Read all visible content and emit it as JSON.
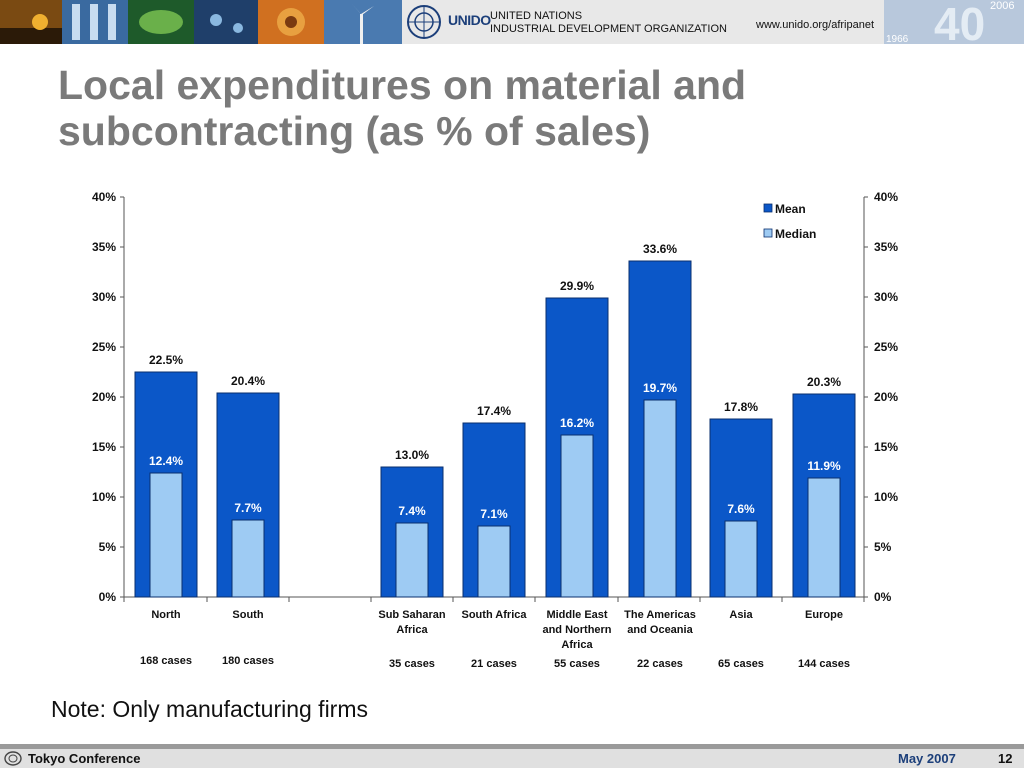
{
  "header": {
    "logo_word": "UNIDO",
    "org_line1": "UNITED NATIONS",
    "org_line2": "INDUSTRIAL DEVELOPMENT ORGANIZATION",
    "url": "www.unido.org/afripanet",
    "anniversary_year_top": "2006",
    "anniversary_year_bottom": "1966",
    "anniversary_number": "40"
  },
  "slide": {
    "title": "Local expenditures on material and subcontracting (as % of sales)",
    "note": "Note: Only manufacturing firms"
  },
  "footer": {
    "left": "Tokyo Conference",
    "date": "May 2007",
    "page": "12"
  },
  "colors": {
    "mean": "#0b57c8",
    "median": "#9ecbf3",
    "title": "#7a7a7a"
  },
  "chart_data": {
    "type": "bar",
    "ylim": [
      0,
      40
    ],
    "y_ticks": [
      "0%",
      "5%",
      "10%",
      "15%",
      "20%",
      "25%",
      "30%",
      "35%",
      "40%"
    ],
    "groups": [
      {
        "label": [
          "North"
        ],
        "cases": "168 cases",
        "mean": 22.5,
        "median": 12.4,
        "mean_label": "22.5%",
        "median_label": "12.4%"
      },
      {
        "label": [
          "South"
        ],
        "cases": "180 cases",
        "mean": 20.4,
        "median": 7.7,
        "mean_label": "20.4%",
        "median_label": "7.7%"
      },
      {
        "label": [
          "Sub Saharan",
          "Africa"
        ],
        "cases": "35 cases",
        "mean": 13.0,
        "median": 7.4,
        "mean_label": "13.0%",
        "median_label": "7.4%"
      },
      {
        "label": [
          "South Africa"
        ],
        "cases": "21 cases",
        "mean": 17.4,
        "median": 7.1,
        "mean_label": "17.4%",
        "median_label": "7.1%"
      },
      {
        "label": [
          "Middle East",
          "and Northern",
          "Africa"
        ],
        "cases": "55 cases",
        "mean": 29.9,
        "median": 16.2,
        "mean_label": "29.9%",
        "median_label": "16.2%"
      },
      {
        "label": [
          "The Americas",
          "and Oceania"
        ],
        "cases": "22 cases",
        "mean": 33.6,
        "median": 19.7,
        "mean_label": "33.6%",
        "median_label": "19.7%"
      },
      {
        "label": [
          "Asia"
        ],
        "cases": "65 cases",
        "mean": 17.8,
        "median": 7.6,
        "mean_label": "17.8%",
        "median_label": "7.6%"
      },
      {
        "label": [
          "Europe"
        ],
        "cases": "144 cases",
        "mean": 20.3,
        "median": 11.9,
        "mean_label": "20.3%",
        "median_label": "11.9%"
      }
    ],
    "legend": {
      "mean": "Mean",
      "median": "Median",
      "position": "top-right"
    }
  }
}
